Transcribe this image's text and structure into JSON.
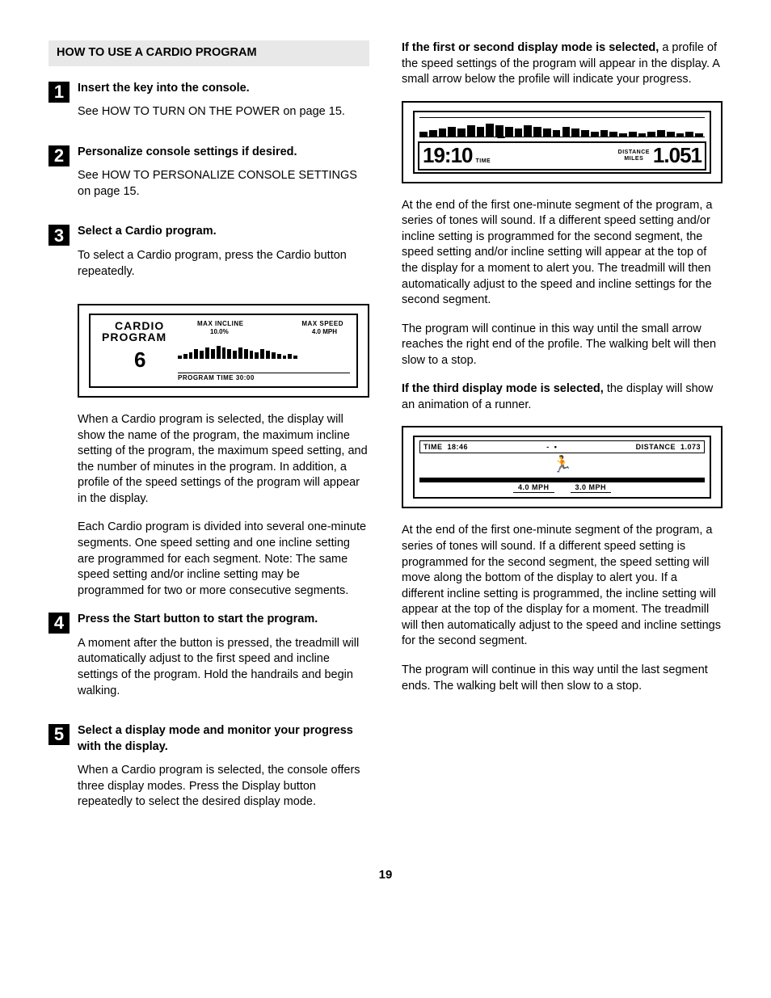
{
  "section_header": "HOW TO USE A CARDIO PROGRAM",
  "steps": [
    {
      "num": "1",
      "title": "Insert the key into the console.",
      "text": "See HOW TO TURN ON THE POWER on page 15."
    },
    {
      "num": "2",
      "title": "Personalize console settings if desired.",
      "text": "See HOW TO PERSONALIZE CONSOLE SETTINGS on page 15."
    },
    {
      "num": "3",
      "title": "Select a Cardio program.",
      "text": "To select a Cardio program, press the Cardio button repeatedly."
    },
    {
      "num": "4",
      "title": "Press the Start button to start the program.",
      "text": "A moment after the button is pressed, the treadmill will automatically adjust to the first speed and incline settings of the program. Hold the handrails and begin walking."
    },
    {
      "num": "5",
      "title": "Select a display mode and monitor your progress with the display.",
      "text": "When a Cardio program is selected, the console offers three display modes. Press the Display button repeatedly to select the desired display mode."
    }
  ],
  "para_after_d1a": "When a Cardio program is selected, the display will show the name of the program, the maximum incline setting of the program, the maximum speed setting, and the number of minutes in the program. In addition, a profile of the speed settings of the program will appear in the display.",
  "para_after_d1b": "Each Cardio program is divided into several one-minute segments. One speed setting and one incline setting are programmed for each segment. Note: The same speed setting and/or incline setting may be programmed for two or more consecutive segments.",
  "col2_lead_bold": "If the first or second display mode is selected,",
  "col2_lead_rest": " a profile of the speed settings of the program will appear in the display. A small arrow below the profile will indicate your progress.",
  "col2_p2": "At the end of the first one-minute segment of the program, a series of tones will sound. If a different speed setting and/or incline setting is programmed for the second segment, the speed setting and/or incline setting will appear at the top of the display for a moment to alert you. The treadmill will then automatically adjust to the speed and incline settings for the second segment.",
  "col2_p3": "The program will continue in this way until the small arrow reaches the right end of the profile. The walking belt will then slow to a stop.",
  "col2_p4_bold": "If the third display mode is selected,",
  "col2_p4_rest": " the display will show an animation of a runner.",
  "col2_p5": "At the end of the first one-minute segment of the program, a series of tones will sound. If a different speed setting is programmed for the second segment, the speed setting will move along the bottom of the display to alert you. If a different incline setting is programmed, the incline setting will appear at the top of the display for a moment. The treadmill will then automatically adjust to the speed and incline settings for the second segment.",
  "col2_p6": "The program will continue in this way until the last segment ends. The walking belt will then slow to a stop.",
  "page_num": "19",
  "display1": {
    "cardio_label": "CARDIO",
    "program_label": "PROGRAM",
    "program_num": "6",
    "max_incline_label": "MAX INCLINE",
    "max_incline_value": "10.0%",
    "max_speed_label": "MAX SPEED",
    "max_speed_value": "4.0 MPH",
    "program_time_label": "PROGRAM TIME  30:00",
    "profile_bars_h": [
      4,
      6,
      8,
      12,
      10,
      14,
      12,
      16,
      14,
      12,
      10,
      14,
      12,
      10,
      8,
      12,
      10,
      8,
      6,
      4,
      6,
      4
    ],
    "bar_color": "#000000"
  },
  "display2": {
    "time_value": "19:10",
    "time_label": "TIME",
    "distance_label_top": "DISTANCE",
    "distance_label_bot": "MILES",
    "distance_value": "1.051",
    "profile_bars_h": [
      3,
      4,
      5,
      6,
      5,
      7,
      6,
      8,
      7,
      6,
      5,
      7,
      6,
      5,
      4,
      6,
      5,
      4,
      3,
      4,
      3,
      2,
      3,
      2,
      3,
      4,
      3,
      2,
      3,
      2
    ],
    "marker_left_pct": 28
  },
  "display3": {
    "time_label": "TIME",
    "time_value": "18:46",
    "distance_label": "DISTANCE",
    "distance_value": "1.073",
    "speed1": "4.0 MPH",
    "speed2": "3.0 MPH",
    "runner_glyph": "🏃"
  }
}
